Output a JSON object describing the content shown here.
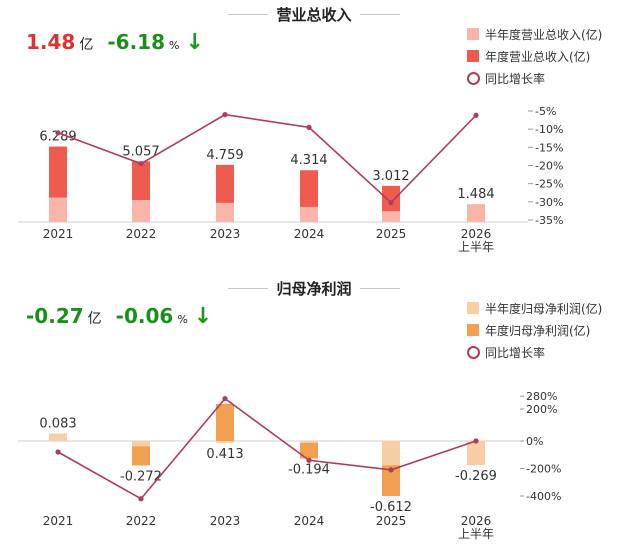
{
  "chart_data": [
    {
      "type": "bar",
      "title": "营业总收入",
      "headline": {
        "value": "1.48",
        "unit": "亿",
        "yoy": "-6.18",
        "yoy_unit": "%"
      },
      "categories": [
        "2021",
        "2022",
        "2023",
        "2024",
        "2025",
        "2026\n上半年"
      ],
      "series": [
        {
          "name": "半年度营业总收入(亿)",
          "kind": "bar",
          "values": [
            2.04,
            1.83,
            1.6,
            1.26,
            0.9,
            1.484
          ]
        },
        {
          "name": "年度营业总收入(亿)",
          "kind": "bar",
          "values": [
            6.289,
            5.057,
            4.759,
            4.314,
            3.012,
            null
          ]
        },
        {
          "name": "同比增长率",
          "kind": "line",
          "axis": "right",
          "values": [
            -11.0,
            -19.5,
            -6.0,
            -9.5,
            -30.2,
            -6.18
          ]
        }
      ],
      "data_labels": [
        "6.289",
        "5.057",
        "4.759",
        "4.314",
        "3.012",
        "1.484"
      ],
      "right_axis": {
        "ticks": [
          "-5%",
          "-10%",
          "-15%",
          "-20%",
          "-25%",
          "-30%",
          "-35%"
        ],
        "range": [
          -35,
          -5
        ]
      },
      "colors": {
        "half": "#f9b5aa",
        "annual": "#ef5b4f",
        "line": "#b03c5a"
      }
    },
    {
      "type": "bar",
      "title": "归母净利润",
      "headline": {
        "value": "-0.27",
        "unit": "亿",
        "yoy": "-0.06",
        "yoy_unit": "%"
      },
      "categories": [
        "2021",
        "2022",
        "2023",
        "2024",
        "2025",
        "2026\n上半年"
      ],
      "series": [
        {
          "name": "半年度归母净利润(亿)",
          "kind": "bar",
          "values": [
            0.083,
            -0.06,
            -0.02,
            -0.02,
            -0.27,
            -0.269
          ]
        },
        {
          "name": "年度归母净利润(亿)",
          "kind": "bar",
          "values": [
            0.083,
            -0.272,
            0.413,
            -0.194,
            -0.612,
            null
          ]
        },
        {
          "name": "同比增长率",
          "kind": "line",
          "axis": "right",
          "values": [
            -80,
            -420,
            265,
            -140,
            -210,
            -0.06
          ]
        }
      ],
      "data_labels": [
        "0.083",
        "-0.272",
        "0.413",
        "-0.194",
        "-0.612",
        "-0.269"
      ],
      "right_axis": {
        "ticks": [
          "280%",
          "200%",
          "0%",
          "-200%",
          "-400%"
        ]
      },
      "colors": {
        "half": "#f8cfa5",
        "annual": "#f0a050",
        "line": "#b03c5a"
      }
    }
  ]
}
